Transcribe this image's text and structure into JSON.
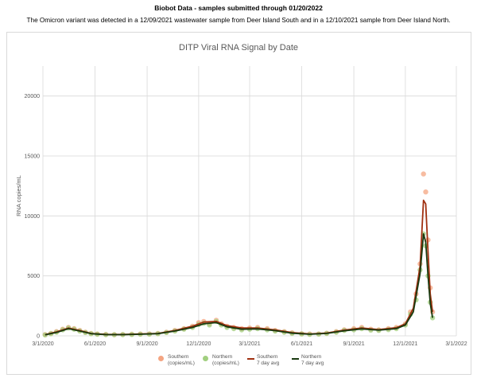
{
  "header": {
    "title": "Biobot Data - samples submitted through 01/20/2022",
    "subtitle": "The Omicron variant was detected in a 12/09/2021 wastewater sample from Deer Island South and in a 12/10/2021 sample from Deer Island North."
  },
  "colors": {
    "southern_points": "#f4a582",
    "northern_points": "#a1cf7f",
    "southern_avg": "#a03010",
    "northern_avg": "#1a3a10",
    "grid": "#d9d9d9",
    "axis_text": "#595959",
    "title_text": "#595959"
  },
  "chart_data": {
    "type": "scatter",
    "title": "DITP Viral RNA Signal by Date",
    "xlabel": "",
    "ylabel": "RNA copies/mL",
    "xlim": [
      "2020-03-01",
      "2022-03-01"
    ],
    "ylim": [
      0,
      22500
    ],
    "x_ticks": [
      "3/1/2020",
      "6/1/2020",
      "9/1/2020",
      "12/1/2020",
      "3/1/2021",
      "6/1/2021",
      "9/1/2021",
      "12/1/2021",
      "3/1/2022"
    ],
    "x_tick_dates": [
      "2020-03-01",
      "2020-06-01",
      "2020-09-01",
      "2020-12-01",
      "2021-03-01",
      "2021-06-01",
      "2021-09-01",
      "2021-12-01",
      "2022-03-01"
    ],
    "y_ticks": [
      0,
      5000,
      10000,
      15000,
      20000
    ],
    "grid": true,
    "legend_position": "bottom",
    "series": [
      {
        "name": "Southern (copies/mL)",
        "kind": "points",
        "x": [
          "2020-03-05",
          "2020-03-15",
          "2020-03-25",
          "2020-04-05",
          "2020-04-15",
          "2020-04-25",
          "2020-05-05",
          "2020-05-15",
          "2020-05-25",
          "2020-06-05",
          "2020-06-20",
          "2020-07-05",
          "2020-07-20",
          "2020-08-05",
          "2020-08-20",
          "2020-09-05",
          "2020-09-20",
          "2020-10-05",
          "2020-10-20",
          "2020-11-05",
          "2020-11-20",
          "2020-12-01",
          "2020-12-10",
          "2020-12-20",
          "2021-01-01",
          "2021-01-10",
          "2021-01-20",
          "2021-02-01",
          "2021-02-15",
          "2021-03-01",
          "2021-03-15",
          "2021-04-01",
          "2021-04-15",
          "2021-05-01",
          "2021-05-15",
          "2021-06-01",
          "2021-06-15",
          "2021-07-01",
          "2021-07-15",
          "2021-08-01",
          "2021-08-15",
          "2021-09-01",
          "2021-09-15",
          "2021-10-01",
          "2021-10-15",
          "2021-11-01",
          "2021-11-15",
          "2021-12-01",
          "2021-12-10",
          "2021-12-20",
          "2021-12-27",
          "2022-01-02",
          "2022-01-06",
          "2022-01-10",
          "2022-01-14",
          "2022-01-18"
        ],
        "values": [
          100,
          200,
          350,
          550,
          700,
          600,
          450,
          300,
          200,
          150,
          120,
          100,
          110,
          130,
          150,
          160,
          200,
          300,
          450,
          600,
          800,
          1100,
          1200,
          1000,
          1300,
          1000,
          800,
          700,
          600,
          650,
          700,
          600,
          450,
          350,
          250,
          180,
          150,
          160,
          220,
          350,
          500,
          600,
          700,
          550,
          500,
          600,
          700,
          1000,
          2000,
          3500,
          6000,
          13500,
          12000,
          8000,
          4000,
          2000
        ]
      },
      {
        "name": "Northern (copies/mL)",
        "kind": "points",
        "x": [
          "2020-03-05",
          "2020-03-15",
          "2020-03-25",
          "2020-04-05",
          "2020-04-15",
          "2020-04-25",
          "2020-05-05",
          "2020-05-15",
          "2020-05-25",
          "2020-06-05",
          "2020-06-20",
          "2020-07-05",
          "2020-07-20",
          "2020-08-05",
          "2020-08-20",
          "2020-09-05",
          "2020-09-20",
          "2020-10-05",
          "2020-10-20",
          "2020-11-05",
          "2020-11-20",
          "2020-12-01",
          "2020-12-10",
          "2020-12-20",
          "2021-01-01",
          "2021-01-10",
          "2021-01-20",
          "2021-02-01",
          "2021-02-15",
          "2021-03-01",
          "2021-03-15",
          "2021-04-01",
          "2021-04-15",
          "2021-05-01",
          "2021-05-15",
          "2021-06-01",
          "2021-06-15",
          "2021-07-01",
          "2021-07-15",
          "2021-08-01",
          "2021-08-15",
          "2021-09-01",
          "2021-09-15",
          "2021-10-01",
          "2021-10-15",
          "2021-11-01",
          "2021-11-15",
          "2021-12-01",
          "2021-12-10",
          "2021-12-20",
          "2021-12-27",
          "2022-01-02",
          "2022-01-06",
          "2022-01-10",
          "2022-01-14",
          "2022-01-18"
        ],
        "values": [
          80,
          180,
          300,
          500,
          650,
          550,
          400,
          280,
          180,
          130,
          100,
          90,
          100,
          110,
          130,
          140,
          180,
          280,
          400,
          550,
          700,
          950,
          1050,
          900,
          1200,
          900,
          700,
          600,
          500,
          550,
          600,
          500,
          400,
          300,
          200,
          150,
          120,
          140,
          200,
          300,
          450,
          500,
          600,
          480,
          450,
          520,
          600,
          900,
          1800,
          3000,
          5500,
          8500,
          7500,
          5000,
          2800,
          1500
        ]
      },
      {
        "name": "Southern 7 day avg",
        "kind": "line",
        "x": [
          "2020-03-05",
          "2020-03-25",
          "2020-04-15",
          "2020-05-05",
          "2020-05-25",
          "2020-06-20",
          "2020-07-20",
          "2020-08-20",
          "2020-09-20",
          "2020-10-20",
          "2020-11-20",
          "2020-12-10",
          "2021-01-01",
          "2021-01-20",
          "2021-02-15",
          "2021-03-15",
          "2021-04-15",
          "2021-05-15",
          "2021-06-15",
          "2021-07-15",
          "2021-08-15",
          "2021-09-15",
          "2021-10-15",
          "2021-11-15",
          "2021-12-01",
          "2021-12-15",
          "2021-12-27",
          "2022-01-02",
          "2022-01-06",
          "2022-01-10",
          "2022-01-14",
          "2022-01-18"
        ],
        "values": [
          100,
          330,
          650,
          450,
          200,
          120,
          110,
          150,
          200,
          450,
          800,
          1150,
          1200,
          850,
          650,
          650,
          500,
          270,
          160,
          230,
          480,
          650,
          520,
          680,
          1000,
          2300,
          5800,
          11300,
          11000,
          7000,
          3500,
          2000
        ]
      },
      {
        "name": "Northern 7 day avg",
        "kind": "line",
        "x": [
          "2020-03-05",
          "2020-03-25",
          "2020-04-15",
          "2020-05-05",
          "2020-05-25",
          "2020-06-20",
          "2020-07-20",
          "2020-08-20",
          "2020-09-20",
          "2020-10-20",
          "2020-11-20",
          "2020-12-10",
          "2021-01-01",
          "2021-01-20",
          "2021-02-15",
          "2021-03-15",
          "2021-04-15",
          "2021-05-15",
          "2021-06-15",
          "2021-07-15",
          "2021-08-15",
          "2021-09-15",
          "2021-10-15",
          "2021-11-15",
          "2021-12-01",
          "2021-12-15",
          "2021-12-27",
          "2022-01-02",
          "2022-01-06",
          "2022-01-10",
          "2022-01-14",
          "2022-01-18"
        ],
        "values": [
          80,
          280,
          600,
          400,
          180,
          100,
          100,
          130,
          180,
          400,
          700,
          1000,
          1100,
          750,
          550,
          580,
          430,
          220,
          130,
          200,
          420,
          580,
          470,
          600,
          900,
          2000,
          5200,
          8500,
          7800,
          5000,
          2700,
          1500
        ]
      }
    ]
  },
  "legend": {
    "southern_points": "Southern\n(copies/mL)",
    "northern_points": "Northern\n(copies/mL)",
    "southern_avg": "Southern\n7 day avg",
    "northern_avg": "Northern\n7 day avg"
  }
}
